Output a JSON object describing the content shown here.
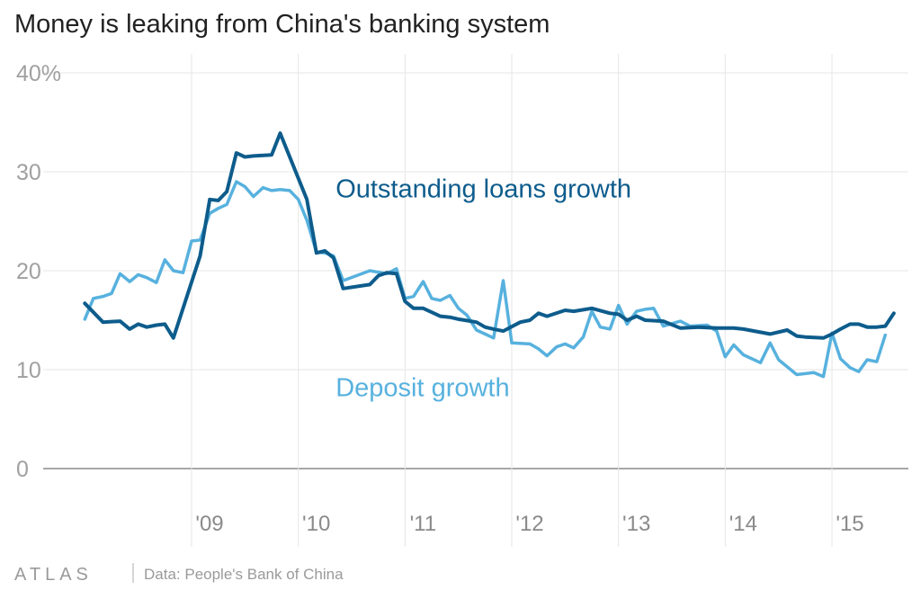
{
  "chart_data": {
    "type": "line",
    "title": "Money is leaking from China's banking system",
    "y_ticks": [
      {
        "value": 0,
        "label": "0"
      },
      {
        "value": 10,
        "label": "10"
      },
      {
        "value": 20,
        "label": "20"
      },
      {
        "value": 30,
        "label": "30"
      },
      {
        "value": 40,
        "label": "40%"
      }
    ],
    "x_ticks": [
      {
        "value": 2009,
        "label": "'09"
      },
      {
        "value": 2010,
        "label": "'10"
      },
      {
        "value": 2011,
        "label": "'11"
      },
      {
        "value": 2012,
        "label": "'12"
      },
      {
        "value": 2013,
        "label": "'13"
      },
      {
        "value": 2014,
        "label": "'14"
      },
      {
        "value": 2015,
        "label": "'15"
      }
    ],
    "xlim": [
      2007.7,
      2015.85
    ],
    "ylim": [
      0,
      40
    ],
    "grid": true,
    "series": [
      {
        "name": "Outstanding loans growth",
        "color": "#0d5c8c",
        "points": [
          [
            2008.0,
            16.7
          ],
          [
            2008.17,
            14.8
          ],
          [
            2008.33,
            14.9
          ],
          [
            2008.42,
            14.1
          ],
          [
            2008.5,
            14.6
          ],
          [
            2008.58,
            14.3
          ],
          [
            2008.67,
            14.5
          ],
          [
            2008.75,
            14.6
          ],
          [
            2008.83,
            13.2
          ],
          [
            2009.08,
            21.5
          ],
          [
            2009.17,
            27.2
          ],
          [
            2009.25,
            27.1
          ],
          [
            2009.33,
            28.0
          ],
          [
            2009.42,
            31.9
          ],
          [
            2009.5,
            31.5
          ],
          [
            2009.58,
            31.6
          ],
          [
            2009.75,
            31.7
          ],
          [
            2009.83,
            33.9
          ],
          [
            2010.08,
            27.2
          ],
          [
            2010.17,
            21.8
          ],
          [
            2010.25,
            22.0
          ],
          [
            2010.33,
            21.3
          ],
          [
            2010.42,
            18.2
          ],
          [
            2010.67,
            18.6
          ],
          [
            2010.75,
            19.5
          ],
          [
            2010.83,
            19.8
          ],
          [
            2010.92,
            19.7
          ],
          [
            2011.0,
            16.9
          ],
          [
            2011.08,
            16.2
          ],
          [
            2011.17,
            16.2
          ],
          [
            2011.33,
            15.4
          ],
          [
            2011.42,
            15.3
          ],
          [
            2011.5,
            15.1
          ],
          [
            2011.67,
            14.8
          ],
          [
            2011.75,
            14.3
          ],
          [
            2011.83,
            14.1
          ],
          [
            2011.92,
            13.9
          ],
          [
            2012.08,
            14.8
          ],
          [
            2012.17,
            15.0
          ],
          [
            2012.25,
            15.7
          ],
          [
            2012.33,
            15.4
          ],
          [
            2012.5,
            16.0
          ],
          [
            2012.58,
            15.9
          ],
          [
            2012.75,
            16.2
          ],
          [
            2012.92,
            15.7
          ],
          [
            2013.0,
            15.6
          ],
          [
            2013.08,
            15.0
          ],
          [
            2013.17,
            15.4
          ],
          [
            2013.25,
            15.0
          ],
          [
            2013.42,
            14.9
          ],
          [
            2013.58,
            14.2
          ],
          [
            2013.75,
            14.3
          ],
          [
            2013.92,
            14.2
          ],
          [
            2014.08,
            14.2
          ],
          [
            2014.17,
            14.1
          ],
          [
            2014.42,
            13.6
          ],
          [
            2014.58,
            14.0
          ],
          [
            2014.67,
            13.4
          ],
          [
            2014.75,
            13.3
          ],
          [
            2014.92,
            13.2
          ],
          [
            2015.0,
            13.6
          ],
          [
            2015.08,
            14.1
          ],
          [
            2015.17,
            14.6
          ],
          [
            2015.25,
            14.6
          ],
          [
            2015.33,
            14.3
          ],
          [
            2015.42,
            14.3
          ],
          [
            2015.5,
            14.4
          ],
          [
            2015.58,
            15.7
          ]
        ]
      },
      {
        "name": "Deposit growth",
        "color": "#57b1de",
        "points": [
          [
            2008.0,
            15.1
          ],
          [
            2008.08,
            17.2
          ],
          [
            2008.17,
            17.4
          ],
          [
            2008.25,
            17.7
          ],
          [
            2008.33,
            19.7
          ],
          [
            2008.42,
            18.9
          ],
          [
            2008.5,
            19.6
          ],
          [
            2008.58,
            19.3
          ],
          [
            2008.67,
            18.8
          ],
          [
            2008.75,
            21.1
          ],
          [
            2008.83,
            20.0
          ],
          [
            2008.92,
            19.8
          ],
          [
            2009.0,
            23.0
          ],
          [
            2009.08,
            23.1
          ],
          [
            2009.17,
            25.8
          ],
          [
            2009.25,
            26.3
          ],
          [
            2009.33,
            26.7
          ],
          [
            2009.42,
            29.0
          ],
          [
            2009.5,
            28.5
          ],
          [
            2009.58,
            27.5
          ],
          [
            2009.67,
            28.4
          ],
          [
            2009.75,
            28.1
          ],
          [
            2009.83,
            28.2
          ],
          [
            2009.92,
            28.1
          ],
          [
            2010.0,
            27.2
          ],
          [
            2010.08,
            25.1
          ],
          [
            2010.17,
            21.9
          ],
          [
            2010.25,
            21.8
          ],
          [
            2010.33,
            21.5
          ],
          [
            2010.42,
            19.0
          ],
          [
            2010.67,
            20.0
          ],
          [
            2010.83,
            19.7
          ],
          [
            2010.92,
            20.2
          ],
          [
            2011.0,
            17.2
          ],
          [
            2011.08,
            17.4
          ],
          [
            2011.17,
            18.9
          ],
          [
            2011.25,
            17.2
          ],
          [
            2011.33,
            17.0
          ],
          [
            2011.42,
            17.5
          ],
          [
            2011.5,
            16.2
          ],
          [
            2011.58,
            15.5
          ],
          [
            2011.67,
            14.0
          ],
          [
            2011.75,
            13.6
          ],
          [
            2011.83,
            13.2
          ],
          [
            2011.92,
            19.0
          ],
          [
            2012.0,
            12.7
          ],
          [
            2012.17,
            12.6
          ],
          [
            2012.25,
            12.1
          ],
          [
            2012.33,
            11.4
          ],
          [
            2012.42,
            12.3
          ],
          [
            2012.5,
            12.6
          ],
          [
            2012.58,
            12.2
          ],
          [
            2012.67,
            13.3
          ],
          [
            2012.75,
            15.9
          ],
          [
            2012.83,
            14.3
          ],
          [
            2012.92,
            14.1
          ],
          [
            2013.0,
            16.5
          ],
          [
            2013.08,
            14.6
          ],
          [
            2013.17,
            15.9
          ],
          [
            2013.25,
            16.1
          ],
          [
            2013.33,
            16.2
          ],
          [
            2013.42,
            14.4
          ],
          [
            2013.58,
            14.9
          ],
          [
            2013.67,
            14.4
          ],
          [
            2013.83,
            14.5
          ],
          [
            2013.92,
            13.9
          ],
          [
            2014.0,
            11.3
          ],
          [
            2014.08,
            12.5
          ],
          [
            2014.17,
            11.5
          ],
          [
            2014.33,
            10.7
          ],
          [
            2014.42,
            12.7
          ],
          [
            2014.5,
            11.0
          ],
          [
            2014.67,
            9.5
          ],
          [
            2014.83,
            9.7
          ],
          [
            2014.92,
            9.3
          ],
          [
            2015.0,
            13.7
          ],
          [
            2015.08,
            11.1
          ],
          [
            2015.17,
            10.2
          ],
          [
            2015.25,
            9.8
          ],
          [
            2015.33,
            11.0
          ],
          [
            2015.42,
            10.8
          ],
          [
            2015.5,
            13.5
          ]
        ]
      }
    ],
    "annotations": [
      {
        "text": "Outstanding loans growth",
        "series": 0,
        "x": 2010.35,
        "y": 27.4
      },
      {
        "text": "Deposit growth",
        "series": 1,
        "x": 2010.35,
        "y": 7.3
      }
    ]
  },
  "footer": {
    "logo": "ATLAS",
    "source": "Data: People's Bank of China"
  }
}
